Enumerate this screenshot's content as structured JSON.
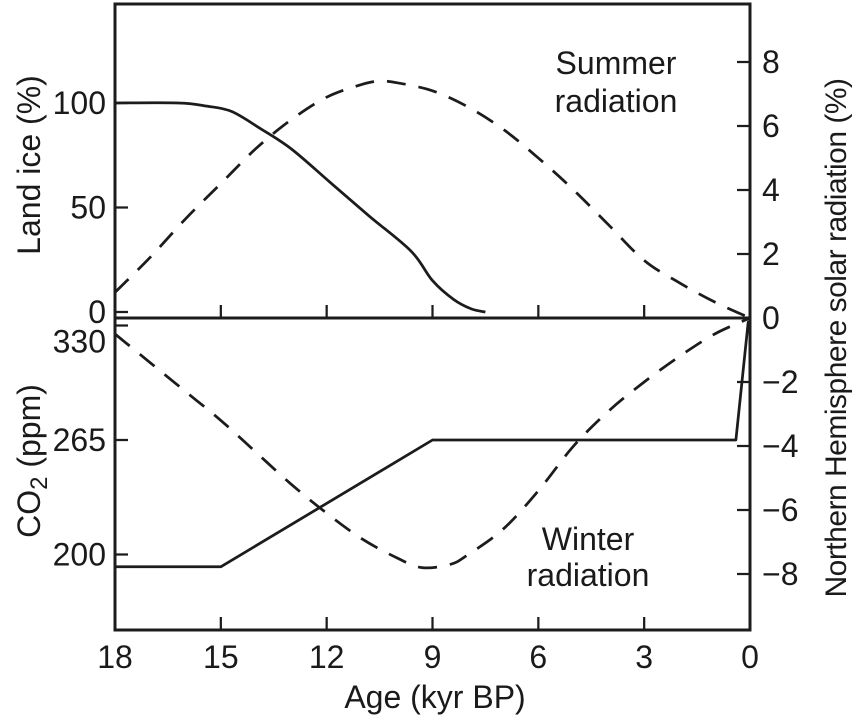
{
  "colors": {
    "line": "#1c1c1c",
    "text": "#1a1a1a",
    "background": "#ffffff"
  },
  "chart_data": {
    "type": "line",
    "title": "",
    "x_axis": {
      "label": "Age (kyr BP)",
      "ticks": [
        18,
        15,
        12,
        9,
        6,
        3,
        0
      ],
      "range": [
        18,
        0
      ],
      "reversed": true,
      "grid": false
    },
    "right_axis": {
      "label": "Northern Hemisphere solar radiation (%)",
      "ticks": [
        8,
        6,
        4,
        2,
        0,
        -2,
        -4,
        -6,
        -8
      ],
      "range": [
        -8,
        8
      ],
      "zero_at_panel_divider": true
    },
    "top_panel": {
      "left_axis": {
        "label": "Land ice (%)",
        "ticks": [
          100,
          50,
          0
        ],
        "range": [
          0,
          145
        ]
      },
      "annotation": {
        "line1": "Summer",
        "line2": "radiation"
      },
      "series": [
        {
          "name": "Land ice",
          "style": "solid",
          "axis": "left",
          "unit": "%",
          "smooth": true,
          "points": [
            [
              18,
              100
            ],
            [
              16.2,
              100
            ],
            [
              15.4,
              98.5
            ],
            [
              14.7,
              96
            ],
            [
              13.9,
              88
            ],
            [
              13,
              78
            ],
            [
              11.9,
              62
            ],
            [
              10.8,
              46
            ],
            [
              9.6,
              29
            ],
            [
              9,
              15
            ],
            [
              8.4,
              6
            ],
            [
              7.9,
              1.5
            ],
            [
              7.5,
              0
            ]
          ]
        },
        {
          "name": "Summer radiation",
          "style": "dashed",
          "axis": "right",
          "unit": "%",
          "smooth": true,
          "points": [
            [
              18,
              0.8
            ],
            [
              17,
              1.9
            ],
            [
              16,
              3.1
            ],
            [
              15,
              4.2
            ],
            [
              14,
              5.3
            ],
            [
              13,
              6.2
            ],
            [
              12,
              6.9
            ],
            [
              11,
              7.3
            ],
            [
              10.5,
              7.4
            ],
            [
              10,
              7.35
            ],
            [
              9,
              7.1
            ],
            [
              8,
              6.6
            ],
            [
              7,
              5.9
            ],
            [
              6,
              5.0
            ],
            [
              5,
              4.0
            ],
            [
              4,
              2.9
            ],
            [
              3,
              1.8
            ],
            [
              2,
              1.1
            ],
            [
              1,
              0.5
            ],
            [
              0,
              0
            ]
          ]
        }
      ]
    },
    "bottom_panel": {
      "left_axis": {
        "label_pre": "CO",
        "label_sub": "2",
        "label_post": " (ppm)",
        "ticks": [
          330,
          265,
          200
        ],
        "range": [
          185,
          335
        ]
      },
      "annotation": {
        "line1": "Winter",
        "line2": "radiation"
      },
      "series": [
        {
          "name": "CO2",
          "style": "solid",
          "axis": "left",
          "unit": "ppm",
          "smooth": false,
          "points": [
            [
              18,
              193
            ],
            [
              15,
              193
            ],
            [
              9,
              265
            ],
            [
              0.4,
              265
            ],
            [
              0.05,
              332
            ],
            [
              0,
              332
            ]
          ]
        },
        {
          "name": "Winter radiation",
          "style": "dashed",
          "axis": "right",
          "unit": "%",
          "smooth": true,
          "points": [
            [
              18,
              -0.5
            ],
            [
              17,
              -1.4
            ],
            [
              16,
              -2.3
            ],
            [
              15,
              -3.2
            ],
            [
              14,
              -4.2
            ],
            [
              13,
              -5.2
            ],
            [
              12,
              -6.1
            ],
            [
              11,
              -6.9
            ],
            [
              10,
              -7.5
            ],
            [
              9.3,
              -7.8
            ],
            [
              8.5,
              -7.7
            ],
            [
              8,
              -7.4
            ],
            [
              7,
              -6.6
            ],
            [
              6,
              -5.4
            ],
            [
              5,
              -4.0
            ],
            [
              4,
              -2.9
            ],
            [
              3,
              -2.0
            ],
            [
              2,
              -1.2
            ],
            [
              1,
              -0.5
            ],
            [
              0,
              0
            ]
          ]
        }
      ]
    }
  }
}
